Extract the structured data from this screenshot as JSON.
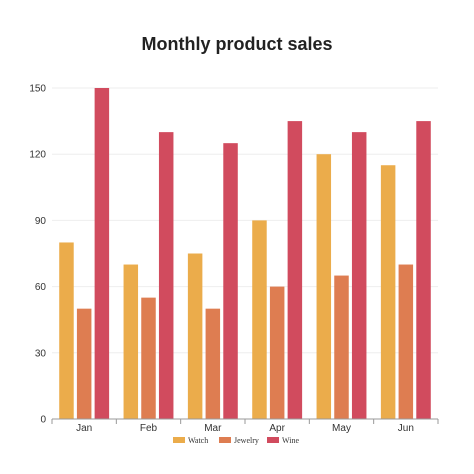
{
  "chart_data": {
    "type": "bar",
    "title": "Monthly product sales",
    "xlabel": "",
    "ylabel": "",
    "categories": [
      "Jan",
      "Feb",
      "Mar",
      "Apr",
      "May",
      "Jun"
    ],
    "series": [
      {
        "name": "Watch",
        "color": "#EBAC4B",
        "values": [
          80,
          70,
          75,
          90,
          120,
          115
        ]
      },
      {
        "name": "Jewelry",
        "color": "#DE7D51",
        "values": [
          50,
          55,
          50,
          60,
          65,
          70
        ]
      },
      {
        "name": "Wine",
        "color": "#D14B5E",
        "values": [
          150,
          130,
          125,
          135,
          130,
          135
        ]
      }
    ],
    "ylim": [
      0,
      150
    ],
    "yticks": [
      "0",
      "30",
      "60",
      "90",
      "120",
      "150"
    ],
    "grid": true,
    "legend_position": "bottom"
  }
}
